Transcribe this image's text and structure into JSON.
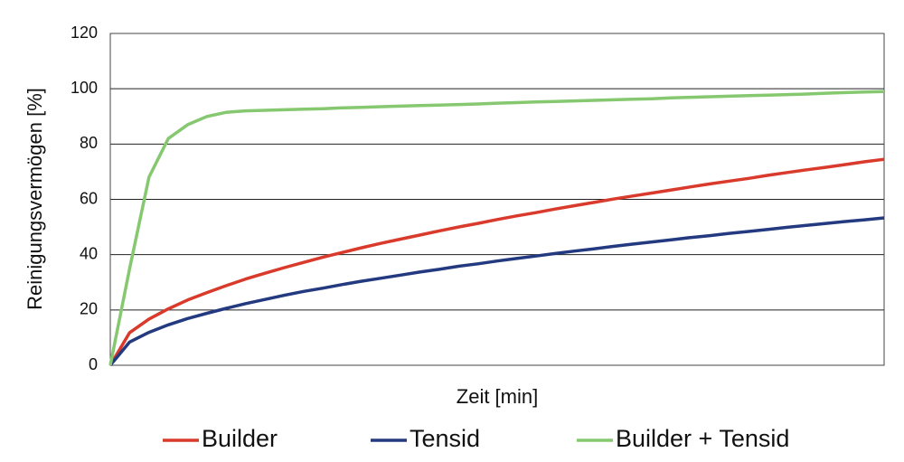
{
  "chart_data": {
    "type": "line",
    "x_label": "Zeit [min]",
    "y_label": "Reinigungsvermögen [%]",
    "categories": [
      null,
      null,
      null,
      null,
      null,
      null,
      null,
      null,
      null,
      null,
      null,
      null,
      null,
      null,
      null,
      null,
      null,
      null,
      null,
      null,
      null,
      null,
      null,
      null,
      null,
      null,
      null,
      null,
      null,
      null,
      null,
      null,
      null,
      null,
      null,
      null,
      null,
      null,
      null,
      null,
      null
    ],
    "series": [
      {
        "name": "Builder",
        "color": "#d93a2b",
        "values": [
          0,
          11.8,
          16.7,
          20.4,
          23.6,
          26.3,
          28.8,
          31.2,
          33.3,
          35.3,
          37.2,
          39.1,
          40.8,
          42.5,
          44.1,
          45.6,
          47.1,
          48.6,
          50.0,
          51.3,
          52.7,
          54.0,
          55.2,
          56.5,
          57.7,
          58.9,
          60.1,
          61.2,
          62.3,
          63.4,
          64.5,
          65.6,
          66.6,
          67.6,
          68.7,
          69.7,
          70.7,
          71.6,
          72.6,
          73.6,
          74.5
        ]
      },
      {
        "name": "Tensid",
        "color": "#243a80",
        "values": [
          0,
          8.4,
          11.9,
          14.6,
          16.9,
          18.8,
          20.6,
          22.3,
          23.8,
          25.3,
          26.7,
          27.9,
          29.2,
          30.4,
          31.5,
          32.6,
          33.7,
          34.7,
          35.8,
          36.7,
          37.7,
          38.6,
          39.5,
          40.4,
          41.3,
          42.1,
          43.0,
          43.8,
          44.6,
          45.4,
          46.2,
          46.9,
          47.7,
          48.4,
          49.1,
          49.9,
          50.6,
          51.3,
          52.0,
          52.6,
          53.3
        ]
      },
      {
        "name": "Builder + Tensid",
        "color": "#86c870",
        "values": [
          0,
          35,
          68,
          82,
          87,
          90,
          91.5,
          92,
          92.2,
          92.4,
          92.6,
          92.8,
          93.1,
          93.3,
          93.5,
          93.7,
          93.9,
          94.1,
          94.3,
          94.5,
          94.8,
          95.0,
          95.2,
          95.4,
          95.6,
          95.8,
          96.0,
          96.2,
          96.4,
          96.7,
          96.9,
          97.1,
          97.3,
          97.5,
          97.7,
          97.9,
          98.1,
          98.4,
          98.6,
          98.8,
          99.0
        ]
      }
    ],
    "ylim": [
      0,
      120
    ],
    "yticks": [
      0,
      20,
      40,
      60,
      80,
      100,
      120
    ],
    "grid": true,
    "legend": "bottom"
  }
}
